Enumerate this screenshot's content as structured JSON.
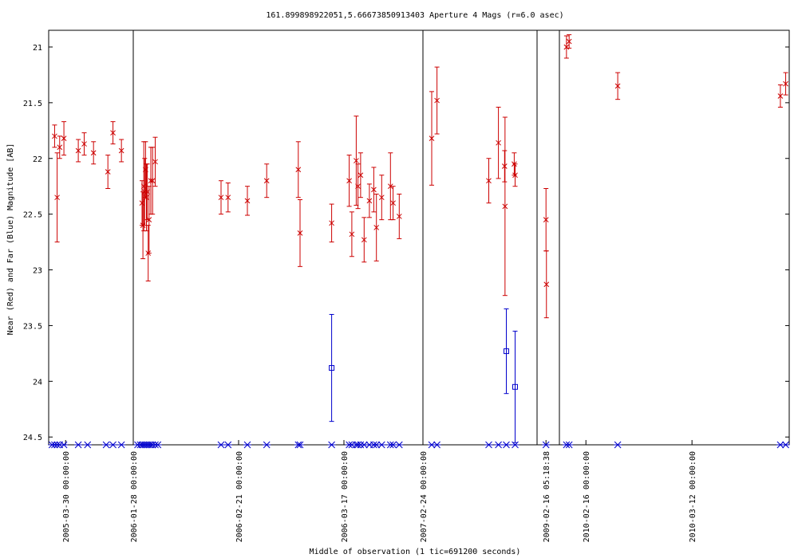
{
  "chart_data": {
    "type": "scatter",
    "title": "161.899898922051,5.66673850913403   Aperture 4 Mags (r=6.0 asec)",
    "xlabel": "Middle of observation (1 tic=691200 seconds)",
    "ylabel": "Near (Red) and Far (Blue) Magnitude [AB]",
    "ylim": [
      24.57,
      20.85
    ],
    "y_inverted": true,
    "y_ticks": [
      "21",
      "21.5",
      "22",
      "22.5",
      "23",
      "23.5",
      "24",
      "24.5"
    ],
    "x_tick_labels": [
      "2005-03-30 00:00:00",
      "2006-01-28 00:00:00",
      "2006-02-21 00:00:00",
      "2006-03-17 00:00:00",
      "2007-02-24 00:00:00",
      "2009-02-16 05:18:38",
      "2010-02-16 00:00:00",
      "2010-03-12 00:00:00"
    ],
    "panels": [
      {
        "label": "2005-03-30",
        "xlim": [
          0,
          10
        ],
        "ticks": [
          2
        ]
      },
      {
        "label": "2006-01-28 to 2006-03-17",
        "xlim": [
          0,
          33
        ],
        "ticks": [
          0,
          12,
          24
        ]
      },
      {
        "label": "2007-02-24",
        "xlim": [
          0,
          13
        ],
        "ticks": [
          0
        ]
      },
      {
        "label": "2009-02-16",
        "xlim": [
          0,
          2.5
        ],
        "ticks": [
          1
        ]
      },
      {
        "label": "2010",
        "xlim": [
          0,
          26
        ],
        "ticks": [
          3,
          15
        ]
      }
    ],
    "series": [
      {
        "name": "Near (Red)",
        "color": "#cc0000",
        "marker": "x",
        "points": [
          {
            "p": 0,
            "x": 0.7,
            "y": 21.8,
            "e": 0.1
          },
          {
            "p": 0,
            "x": 1.0,
            "y": 22.35,
            "e": 0.4
          },
          {
            "p": 0,
            "x": 1.3,
            "y": 21.9,
            "e": 0.1
          },
          {
            "p": 0,
            "x": 1.8,
            "y": 21.82,
            "e": 0.15
          },
          {
            "p": 0,
            "x": 3.5,
            "y": 21.93,
            "e": 0.1
          },
          {
            "p": 0,
            "x": 4.2,
            "y": 21.87,
            "e": 0.1
          },
          {
            "p": 0,
            "x": 5.3,
            "y": 21.95,
            "e": 0.1
          },
          {
            "p": 0,
            "x": 7.0,
            "y": 22.12,
            "e": 0.15
          },
          {
            "p": 0,
            "x": 7.6,
            "y": 21.77,
            "e": 0.1
          },
          {
            "p": 0,
            "x": 8.6,
            "y": 21.93,
            "e": 0.1
          },
          {
            "p": 1,
            "x": 1.0,
            "y": 22.4,
            "e": 0.2
          },
          {
            "p": 1,
            "x": 1.1,
            "y": 22.6,
            "e": 0.3
          },
          {
            "p": 1,
            "x": 1.2,
            "y": 22.25,
            "e": 0.4
          },
          {
            "p": 1,
            "x": 1.3,
            "y": 22.3,
            "e": 0.3
          },
          {
            "p": 1,
            "x": 1.4,
            "y": 22.1,
            "e": 0.25
          },
          {
            "p": 1,
            "x": 1.5,
            "y": 22.35,
            "e": 0.3
          },
          {
            "p": 1,
            "x": 1.6,
            "y": 22.3,
            "e": 0.25
          },
          {
            "p": 1,
            "x": 1.7,
            "y": 22.85,
            "e": 0.25
          },
          {
            "p": 1,
            "x": 1.8,
            "y": 22.55,
            "e": 0.3
          },
          {
            "p": 1,
            "x": 2.0,
            "y": 22.2,
            "e": 0.3
          },
          {
            "p": 1,
            "x": 2.2,
            "y": 22.2,
            "e": 0.3
          },
          {
            "p": 1,
            "x": 2.5,
            "y": 22.03,
            "e": 0.22
          },
          {
            "p": 1,
            "x": 10.0,
            "y": 22.35,
            "e": 0.15
          },
          {
            "p": 1,
            "x": 10.8,
            "y": 22.35,
            "e": 0.13
          },
          {
            "p": 1,
            "x": 13.0,
            "y": 22.38,
            "e": 0.13
          },
          {
            "p": 1,
            "x": 15.2,
            "y": 22.2,
            "e": 0.15
          },
          {
            "p": 1,
            "x": 18.8,
            "y": 22.1,
            "e": 0.25
          },
          {
            "p": 1,
            "x": 19.0,
            "y": 22.67,
            "e": 0.3
          },
          {
            "p": 1,
            "x": 22.6,
            "y": 22.58,
            "e": 0.17
          },
          {
            "p": 1,
            "x": 24.6,
            "y": 22.2,
            "e": 0.23
          },
          {
            "p": 1,
            "x": 24.9,
            "y": 22.68,
            "e": 0.2
          },
          {
            "p": 1,
            "x": 25.4,
            "y": 22.02,
            "e": 0.4
          },
          {
            "p": 1,
            "x": 25.6,
            "y": 22.25,
            "e": 0.2
          },
          {
            "p": 1,
            "x": 25.9,
            "y": 22.15,
            "e": 0.2
          },
          {
            "p": 1,
            "x": 26.3,
            "y": 22.73,
            "e": 0.2
          },
          {
            "p": 1,
            "x": 26.9,
            "y": 22.38,
            "e": 0.15
          },
          {
            "p": 1,
            "x": 27.4,
            "y": 22.28,
            "e": 0.2
          },
          {
            "p": 1,
            "x": 27.7,
            "y": 22.62,
            "e": 0.3
          },
          {
            "p": 1,
            "x": 28.3,
            "y": 22.35,
            "e": 0.2
          },
          {
            "p": 1,
            "x": 29.3,
            "y": 22.25,
            "e": 0.3
          },
          {
            "p": 1,
            "x": 29.6,
            "y": 22.4,
            "e": 0.15
          },
          {
            "p": 1,
            "x": 30.3,
            "y": 22.52,
            "e": 0.2
          },
          {
            "p": 2,
            "x": 1.0,
            "y": 21.82,
            "e": 0.42
          },
          {
            "p": 2,
            "x": 1.6,
            "y": 21.48,
            "e": 0.3
          },
          {
            "p": 2,
            "x": 7.5,
            "y": 22.2,
            "e": 0.2
          },
          {
            "p": 2,
            "x": 8.6,
            "y": 21.86,
            "e": 0.32
          },
          {
            "p": 2,
            "x": 9.3,
            "y": 22.07,
            "e": 0.14
          },
          {
            "p": 2,
            "x": 9.35,
            "y": 22.43,
            "e": 0.8
          },
          {
            "p": 2,
            "x": 10.4,
            "y": 22.05,
            "e": 0.1
          },
          {
            "p": 2,
            "x": 10.5,
            "y": 22.15,
            "e": 0.1
          },
          {
            "p": 3,
            "x": 1.0,
            "y": 22.55,
            "e": 0.28
          },
          {
            "p": 3,
            "x": 1.05,
            "y": 23.13,
            "e": 0.3
          },
          {
            "p": 4,
            "x": 0.8,
            "y": 21.0,
            "e": 0.1
          },
          {
            "p": 4,
            "x": 1.1,
            "y": 20.95,
            "e": 0.06
          },
          {
            "p": 4,
            "x": 6.6,
            "y": 21.35,
            "e": 0.12
          },
          {
            "p": 4,
            "x": 25.0,
            "y": 21.44,
            "e": 0.1
          },
          {
            "p": 4,
            "x": 25.6,
            "y": 21.33,
            "e": 0.1
          }
        ]
      },
      {
        "name": "Far (Blue)",
        "color": "#0000cc",
        "marker": "square",
        "points": [
          {
            "p": 1,
            "x": 22.6,
            "y": 23.88,
            "e": 0.48
          },
          {
            "p": 2,
            "x": 9.5,
            "y": 23.73,
            "e": 0.38
          },
          {
            "p": 2,
            "x": 10.5,
            "y": 24.05,
            "e": 0.5
          }
        ]
      },
      {
        "name": "Non-detection markers",
        "color": "#0000cc",
        "marker": "asterisk",
        "y": 24.57,
        "points": [
          {
            "p": 0,
            "x": [
              0.4,
              0.7,
              1.0,
              1.3,
              1.8,
              3.5,
              4.6,
              6.8,
              7.6,
              8.6
            ]
          },
          {
            "p": 1,
            "x": [
              0.5,
              0.8,
              1.0,
              1.2,
              1.4,
              1.6,
              1.8,
              2.0,
              2.2,
              2.5,
              2.8,
              10.0,
              10.8,
              13.0,
              15.2,
              18.8,
              19.0,
              22.6,
              24.6,
              24.9,
              25.4,
              25.6,
              25.9,
              26.3,
              26.9,
              27.4,
              27.7,
              28.3,
              29.3,
              29.6,
              30.3
            ]
          },
          {
            "p": 2,
            "x": [
              1.0,
              1.6,
              7.5,
              8.6,
              9.5,
              10.5
            ]
          },
          {
            "p": 3,
            "x": [
              1.0
            ]
          },
          {
            "p": 4,
            "x": [
              0.8,
              1.1,
              6.6,
              25.0,
              25.6
            ]
          }
        ]
      }
    ],
    "grid": false
  }
}
